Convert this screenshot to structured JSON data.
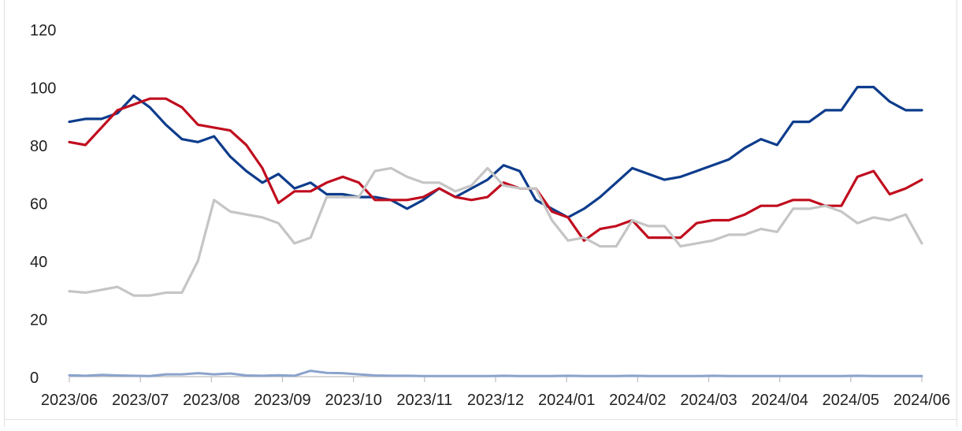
{
  "chart_data": {
    "type": "line",
    "title": "",
    "xlabel": "",
    "ylabel": "",
    "ylim": [
      0,
      120
    ],
    "yticks": [
      0,
      20,
      40,
      60,
      80,
      100,
      120
    ],
    "grid": false,
    "legend": "none",
    "x_tick_labels": [
      "2023/06",
      "2023/07",
      "2023/08",
      "2023/09",
      "2023/10",
      "2023/11",
      "2023/12",
      "2024/01",
      "2024/02",
      "2024/03",
      "2024/04",
      "2024/05",
      "2024/06"
    ],
    "x": [
      "2023-06-01",
      "2023-06-08",
      "2023-06-15",
      "2023-06-22",
      "2023-06-29",
      "2023-07-06",
      "2023-07-13",
      "2023-07-20",
      "2023-07-27",
      "2023-08-03",
      "2023-08-10",
      "2023-08-17",
      "2023-08-24",
      "2023-08-31",
      "2023-09-07",
      "2023-09-14",
      "2023-09-21",
      "2023-09-28",
      "2023-10-05",
      "2023-10-12",
      "2023-10-19",
      "2023-10-26",
      "2023-11-02",
      "2023-11-09",
      "2023-11-16",
      "2023-11-23",
      "2023-11-30",
      "2023-12-07",
      "2023-12-14",
      "2023-12-21",
      "2023-12-28",
      "2024-01-04",
      "2024-01-11",
      "2024-01-18",
      "2024-01-25",
      "2024-02-01",
      "2024-02-08",
      "2024-02-15",
      "2024-02-22",
      "2024-02-29",
      "2024-03-07",
      "2024-03-14",
      "2024-03-21",
      "2024-03-28",
      "2024-04-04",
      "2024-04-11",
      "2024-04-18",
      "2024-04-25",
      "2024-05-02",
      "2024-05-09",
      "2024-05-16",
      "2024-05-23",
      "2024-05-30",
      "2024-06-06"
    ],
    "series": [
      {
        "color": "#0d3c8c",
        "width": 3.2,
        "values": [
          88,
          89,
          89,
          91,
          97,
          93,
          87,
          82,
          81,
          83,
          76,
          71,
          67,
          70,
          65,
          67,
          63,
          63,
          62,
          62,
          61,
          58,
          61,
          65,
          62,
          65,
          68,
          73,
          71,
          61,
          58,
          55,
          58,
          62,
          67,
          72,
          70,
          68,
          69,
          71,
          73,
          75,
          79,
          82,
          80,
          88,
          88,
          92,
          92,
          100,
          100,
          95,
          92,
          92
        ]
      },
      {
        "color": "#c00d1e",
        "width": 3.2,
        "values": [
          81,
          80,
          86,
          92,
          94,
          96,
          96,
          93,
          87,
          86,
          85,
          80,
          72,
          60,
          64,
          64,
          67,
          69,
          67,
          61,
          61,
          61,
          62,
          65,
          62,
          61,
          62,
          67,
          65,
          65,
          57,
          55,
          47,
          51,
          52,
          54,
          48,
          48,
          48,
          53,
          54,
          54,
          56,
          59,
          59,
          61,
          61,
          59,
          59,
          69,
          71,
          63,
          65,
          68
        ]
      },
      {
        "color": "#c5c5c5",
        "width": 3.2,
        "values": [
          29.5,
          29,
          30,
          31,
          28,
          28,
          29,
          29,
          40,
          61,
          57,
          56,
          55,
          53,
          46,
          48,
          62,
          62,
          62,
          71,
          72,
          69,
          67,
          67,
          64,
          66,
          72,
          66,
          65,
          65,
          54,
          47,
          48,
          45,
          45,
          54,
          52,
          52,
          45,
          46,
          47,
          49,
          49,
          51,
          50,
          58,
          58,
          59,
          57,
          53,
          55,
          54,
          56,
          46
        ]
      },
      {
        "color": "#8ba3cc",
        "width": 3,
        "values": [
          0.5,
          0.3,
          0.6,
          0.4,
          0.3,
          0.2,
          0.8,
          0.8,
          1.2,
          0.8,
          1.1,
          0.4,
          0.3,
          0.5,
          0.3,
          2,
          1.3,
          1.2,
          0.8,
          0.4,
          0.3,
          0.3,
          0.2,
          0.2,
          0.2,
          0.2,
          0.2,
          0.3,
          0.2,
          0.2,
          0.2,
          0.3,
          0.2,
          0.2,
          0.2,
          0.3,
          0.2,
          0.2,
          0.2,
          0.2,
          0.3,
          0.2,
          0.2,
          0.2,
          0.2,
          0.2,
          0.2,
          0.2,
          0.2,
          0.3,
          0.2,
          0.2,
          0.2,
          0.2
        ]
      }
    ]
  }
}
